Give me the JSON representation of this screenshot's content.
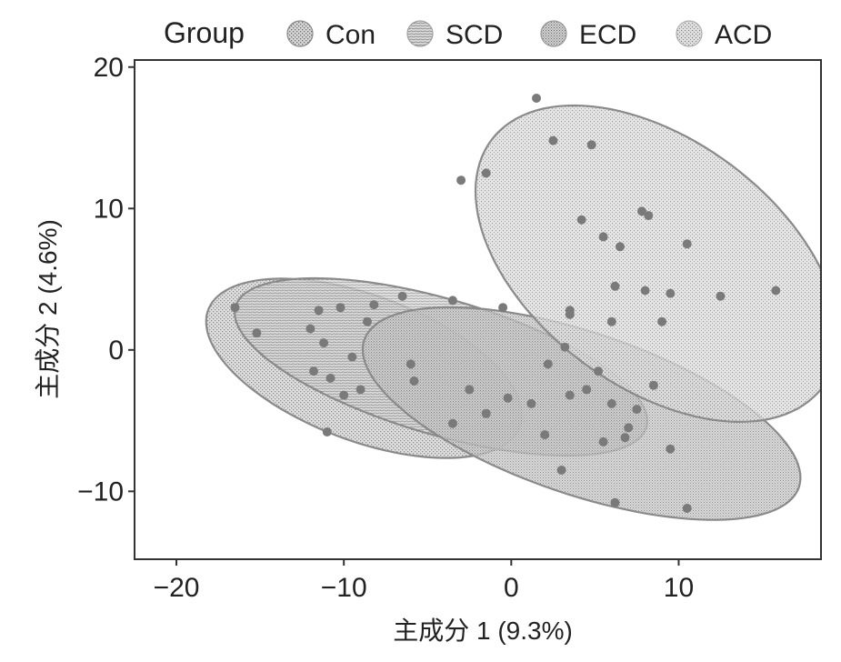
{
  "chart_data": {
    "type": "scatter",
    "xlabel": "主成分 1 (9.3%)",
    "ylabel": "主成分 2 (4.6%)",
    "xlim": [
      -22.5,
      18.5
    ],
    "ylim": [
      -14.8,
      20.5
    ],
    "xticks": [
      -20,
      -10,
      0,
      10
    ],
    "yticks": [
      20,
      10,
      0,
      -10
    ],
    "grid": false,
    "legend": {
      "title": "Group",
      "position": "top",
      "entries": [
        "Con",
        "SCD",
        "ECD",
        "ACD"
      ]
    },
    "series_colors": [
      "#8a8a8a",
      "#a2a2a2",
      "#999999",
      "#b0b0b0"
    ],
    "point_color": "#7a7a7a",
    "ellipse_stroke": "#8a8a8a",
    "series": [
      {
        "name": "Con",
        "ellipse": {
          "cx": -8.8,
          "cy": -1.3,
          "rx": 10.2,
          "ry": 5.0,
          "angle_deg": -26
        },
        "points": [
          [
            -16.5,
            3.0
          ],
          [
            -15.2,
            1.2
          ],
          [
            -12.0,
            1.5
          ],
          [
            -11.2,
            0.5
          ],
          [
            -11.8,
            -1.5
          ],
          [
            -10.8,
            -2.0
          ],
          [
            -10.0,
            -3.2
          ],
          [
            -11.0,
            -5.8
          ],
          [
            -9.0,
            -2.8
          ],
          [
            -8.6,
            2.0
          ]
        ]
      },
      {
        "name": "SCD",
        "ellipse": {
          "cx": -4.2,
          "cy": -1.2,
          "rx": 13.0,
          "ry": 4.7,
          "angle_deg": -20
        },
        "points": [
          [
            -11.5,
            2.8
          ],
          [
            -10.2,
            3.0
          ],
          [
            -9.5,
            -0.5
          ],
          [
            -8.2,
            3.2
          ],
          [
            -6.5,
            3.8
          ],
          [
            -5.8,
            -2.2
          ],
          [
            -3.5,
            3.5
          ],
          [
            -2.5,
            -2.8
          ],
          [
            -1.5,
            -4.5
          ],
          [
            -0.2,
            -3.4
          ],
          [
            -3.5,
            -5.2
          ],
          [
            -6.0,
            -1.0
          ],
          [
            1.2,
            -3.8
          ],
          [
            2.0,
            -6.0
          ],
          [
            -0.5,
            3.0
          ]
        ]
      },
      {
        "name": "ECD",
        "ellipse": {
          "cx": 4.2,
          "cy": -4.5,
          "rx": 14.0,
          "ry": 5.6,
          "angle_deg": -23
        },
        "points": [
          [
            3.5,
            2.5
          ],
          [
            5.2,
            -1.5
          ],
          [
            6.0,
            -3.8
          ],
          [
            7.0,
            -5.5
          ],
          [
            7.5,
            -4.2
          ],
          [
            8.5,
            -2.5
          ],
          [
            9.5,
            -7.0
          ],
          [
            5.5,
            -6.5
          ],
          [
            3.0,
            -8.5
          ],
          [
            6.2,
            -10.8
          ],
          [
            10.5,
            -11.2
          ],
          [
            2.2,
            -1.0
          ],
          [
            3.5,
            -3.2
          ],
          [
            4.5,
            -2.8
          ],
          [
            6.8,
            -6.2
          ]
        ]
      },
      {
        "name": "ACD",
        "ellipse": {
          "cx": 8.7,
          "cy": 6.1,
          "rx": 13.3,
          "ry": 8.1,
          "angle_deg": -47
        },
        "points": [
          [
            1.5,
            17.8
          ],
          [
            2.5,
            14.8
          ],
          [
            4.8,
            14.5
          ],
          [
            -1.5,
            12.5
          ],
          [
            -3.0,
            12.0
          ],
          [
            4.2,
            9.2
          ],
          [
            5.5,
            8.0
          ],
          [
            6.5,
            7.3
          ],
          [
            7.8,
            9.8
          ],
          [
            8.2,
            9.5
          ],
          [
            10.5,
            7.5
          ],
          [
            6.2,
            4.5
          ],
          [
            8.0,
            4.2
          ],
          [
            9.5,
            4.0
          ],
          [
            12.5,
            3.8
          ],
          [
            15.8,
            4.2
          ],
          [
            6.0,
            2.0
          ],
          [
            9.0,
            2.0
          ],
          [
            3.5,
            2.8
          ],
          [
            3.2,
            0.2
          ]
        ]
      }
    ]
  }
}
